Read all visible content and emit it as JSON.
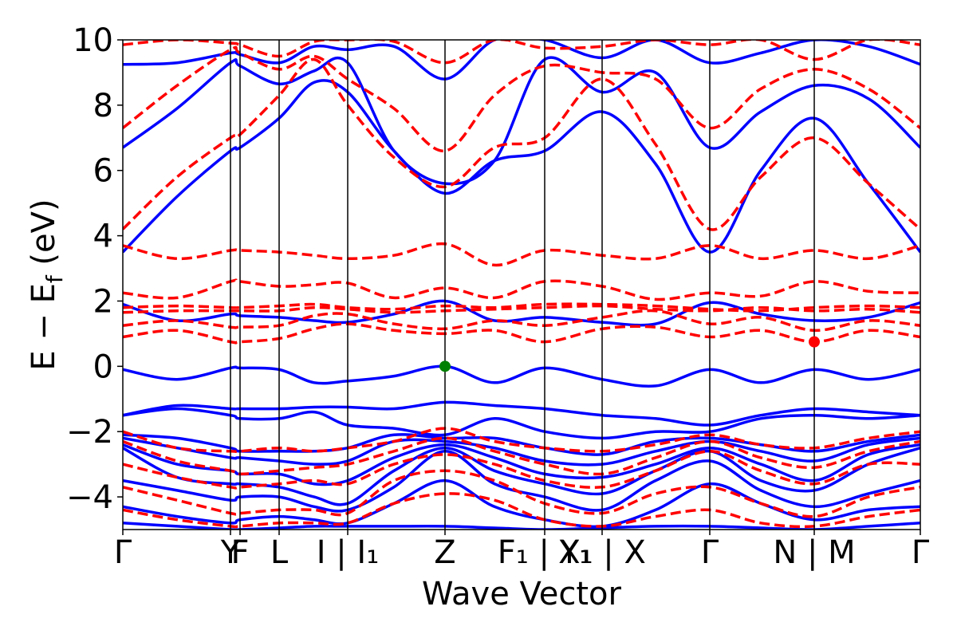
{
  "chart_data": {
    "type": "line",
    "title": "",
    "xlabel": "Wave Vector",
    "ylabel": "E − E_f (eV)",
    "ylabel_parts": {
      "main": "E  −  E",
      "sub": "f",
      "unit": " (eV)"
    },
    "ylim": [
      -5,
      10
    ],
    "yticks": [
      -4,
      -2,
      0,
      2,
      4,
      6,
      8,
      10
    ],
    "ytick_labels": [
      "−4",
      "−2",
      "0",
      "2",
      "4",
      "6",
      "8",
      "10"
    ],
    "grid": false,
    "legend": "none",
    "kpath": [
      {
        "label": "Γ",
        "x": 0.0
      },
      {
        "label": "Y",
        "x": 0.135
      },
      {
        "label": "F",
        "x": 0.147
      },
      {
        "label": "L",
        "x": 0.196
      },
      {
        "label": "I | I₁",
        "x": 0.282
      },
      {
        "label": "Z",
        "x": 0.404
      },
      {
        "label": "F₁ | Y₁",
        "x": 0.529
      },
      {
        "label": "X₁ | X",
        "x": 0.601
      },
      {
        "label": "Γ",
        "x": 0.736
      },
      {
        "label": "N | M",
        "x": 0.867
      },
      {
        "label": "Γ",
        "x": 1.0
      }
    ],
    "band_x": [
      0.0,
      0.068,
      0.135,
      0.147,
      0.196,
      0.24,
      0.282,
      0.34,
      0.404,
      0.466,
      0.529,
      0.601,
      0.668,
      0.736,
      0.8,
      0.867,
      0.935,
      1.0
    ],
    "series": [
      {
        "style": "solid",
        "color": "#0000ff",
        "bands": [
          [
            -4.8,
            -4.9,
            -5.0,
            -5.0,
            -4.95,
            -4.9,
            -4.9,
            -4.9,
            -4.9,
            -4.95,
            -5.0,
            -4.95,
            -4.9,
            -4.9,
            -4.95,
            -5.0,
            -4.9,
            -4.8
          ],
          [
            -4.3,
            -4.6,
            -4.8,
            -4.7,
            -4.6,
            -4.7,
            -4.8,
            -4.2,
            -3.5,
            -4.3,
            -4.7,
            -4.9,
            -4.4,
            -3.6,
            -4.2,
            -4.7,
            -4.4,
            -4.3
          ],
          [
            -3.5,
            -3.8,
            -4.1,
            -4.0,
            -4.0,
            -4.3,
            -4.4,
            -3.7,
            -2.6,
            -3.6,
            -4.0,
            -4.4,
            -3.5,
            -2.9,
            -3.8,
            -4.3,
            -3.9,
            -3.5
          ],
          [
            -2.5,
            -3.4,
            -3.6,
            -3.6,
            -3.7,
            -4.0,
            -4.2,
            -3.2,
            -2.5,
            -3.2,
            -3.6,
            -3.9,
            -3.2,
            -2.6,
            -3.5,
            -3.8,
            -3.0,
            -2.5
          ],
          [
            -2.4,
            -3.0,
            -3.2,
            -3.3,
            -3.3,
            -3.6,
            -3.5,
            -2.8,
            -2.4,
            -2.8,
            -3.3,
            -3.4,
            -3.0,
            -2.5,
            -3.0,
            -3.5,
            -2.7,
            -2.4
          ],
          [
            -2.2,
            -2.5,
            -2.8,
            -2.8,
            -2.9,
            -3.0,
            -2.9,
            -2.3,
            -2.3,
            -2.5,
            -2.9,
            -3.0,
            -2.6,
            -2.3,
            -2.6,
            -2.9,
            -2.4,
            -2.2
          ],
          [
            -2.1,
            -2.2,
            -2.5,
            -2.6,
            -2.6,
            -2.6,
            -2.5,
            -2.1,
            -2.2,
            -2.2,
            -2.5,
            -2.7,
            -2.3,
            -2.2,
            -2.4,
            -2.6,
            -2.3,
            -2.1
          ],
          [
            -1.5,
            -1.3,
            -1.5,
            -1.6,
            -1.6,
            -1.4,
            -1.8,
            -1.9,
            -2.1,
            -1.6,
            -2.0,
            -2.2,
            -2.0,
            -2.0,
            -1.6,
            -1.5,
            -1.6,
            -1.5
          ],
          [
            -1.5,
            -1.2,
            -1.3,
            -1.3,
            -1.3,
            -1.25,
            -1.25,
            -1.3,
            -1.1,
            -1.2,
            -1.3,
            -1.5,
            -1.6,
            -1.8,
            -1.5,
            -1.3,
            -1.4,
            -1.5
          ],
          [
            -0.1,
            -0.4,
            -0.05,
            -0.05,
            -0.1,
            -0.5,
            -0.45,
            -0.3,
            0.0,
            -0.5,
            -0.05,
            -0.4,
            -0.6,
            -0.1,
            -0.5,
            -0.1,
            -0.4,
            -0.1
          ],
          [
            1.9,
            1.4,
            1.6,
            1.55,
            1.5,
            1.4,
            1.35,
            1.6,
            2.0,
            1.4,
            1.5,
            1.35,
            1.3,
            1.95,
            1.6,
            1.4,
            1.5,
            1.95
          ],
          [
            3.5,
            5.2,
            6.6,
            6.7,
            7.6,
            8.7,
            8.4,
            6.6,
            5.3,
            6.3,
            6.6,
            7.8,
            6.2,
            3.5,
            6.0,
            7.6,
            5.6,
            3.5
          ],
          [
            6.7,
            7.9,
            9.3,
            9.2,
            8.65,
            9.05,
            9.3,
            6.6,
            5.6,
            6.3,
            9.4,
            8.4,
            9.0,
            6.7,
            7.8,
            8.6,
            8.2,
            6.7
          ],
          [
            9.25,
            9.3,
            9.6,
            9.55,
            9.3,
            9.8,
            9.7,
            9.8,
            8.8,
            10.0,
            10.0,
            9.45,
            10.0,
            9.3,
            9.6,
            10.0,
            9.8,
            9.25
          ]
        ]
      },
      {
        "style": "dashed",
        "color": "#ff0000",
        "bands": [
          [
            -4.4,
            -4.7,
            -4.9,
            -4.9,
            -4.8,
            -4.8,
            -4.8,
            -4.2,
            -3.9,
            -4.1,
            -4.7,
            -4.9,
            -4.6,
            -4.4,
            -4.8,
            -4.9,
            -4.6,
            -4.4
          ],
          [
            -3.7,
            -4.1,
            -4.5,
            -4.5,
            -4.4,
            -4.4,
            -4.5,
            -3.5,
            -3.2,
            -3.5,
            -4.2,
            -4.5,
            -3.9,
            -3.7,
            -4.2,
            -4.6,
            -4.0,
            -3.7
          ],
          [
            -3.0,
            -3.4,
            -3.7,
            -3.7,
            -3.6,
            -3.5,
            -3.6,
            -3.0,
            -2.7,
            -3.0,
            -3.5,
            -3.7,
            -3.2,
            -2.6,
            -3.2,
            -3.6,
            -3.0,
            -3.0
          ],
          [
            -2.3,
            -2.9,
            -3.2,
            -3.3,
            -3.2,
            -3.1,
            -3.0,
            -2.6,
            -2.2,
            -2.6,
            -3.0,
            -3.3,
            -2.8,
            -2.3,
            -2.8,
            -3.1,
            -2.6,
            -2.3
          ],
          [
            -2.0,
            -2.5,
            -2.6,
            -2.6,
            -2.5,
            -2.6,
            -2.5,
            -2.3,
            -1.9,
            -2.3,
            -2.5,
            -2.6,
            -2.4,
            -2.1,
            -2.4,
            -2.5,
            -2.2,
            -2.0
          ],
          [
            0.9,
            1.1,
            0.75,
            0.75,
            0.85,
            1.15,
            1.3,
            1.1,
            1.0,
            1.1,
            0.75,
            1.15,
            1.2,
            0.9,
            1.1,
            0.75,
            1.1,
            0.9
          ],
          [
            1.25,
            1.4,
            1.2,
            1.2,
            1.25,
            1.55,
            1.6,
            1.3,
            1.15,
            1.4,
            1.25,
            1.5,
            1.7,
            1.3,
            1.5,
            1.1,
            1.4,
            1.25
          ],
          [
            1.65,
            1.7,
            1.7,
            1.7,
            1.7,
            1.8,
            1.75,
            1.65,
            1.7,
            1.75,
            1.8,
            1.85,
            1.75,
            1.7,
            1.8,
            1.7,
            1.75,
            1.65
          ],
          [
            1.8,
            1.85,
            1.8,
            1.8,
            1.85,
            1.9,
            1.8,
            1.75,
            1.85,
            1.8,
            1.9,
            1.9,
            1.85,
            1.75,
            1.7,
            1.8,
            1.85,
            1.8
          ],
          [
            2.25,
            2.1,
            2.6,
            2.6,
            2.45,
            2.5,
            2.55,
            2.1,
            2.4,
            2.1,
            2.6,
            2.45,
            2.05,
            2.25,
            2.15,
            2.6,
            2.3,
            2.25
          ],
          [
            3.7,
            3.3,
            3.55,
            3.55,
            3.5,
            3.4,
            3.3,
            3.4,
            3.75,
            3.1,
            3.55,
            3.4,
            3.3,
            3.7,
            3.3,
            3.55,
            3.3,
            3.7
          ],
          [
            4.2,
            5.8,
            7.0,
            7.1,
            8.3,
            9.4,
            8.0,
            6.4,
            5.5,
            6.7,
            7.0,
            8.8,
            6.8,
            4.2,
            5.8,
            7.0,
            5.6,
            4.2
          ],
          [
            7.3,
            8.6,
            9.7,
            9.6,
            9.1,
            9.5,
            8.8,
            7.9,
            6.6,
            8.3,
            9.2,
            9.0,
            8.8,
            7.3,
            8.5,
            9.1,
            8.5,
            7.3
          ],
          [
            9.85,
            10.0,
            9.9,
            9.85,
            9.5,
            9.95,
            10.0,
            9.95,
            9.3,
            10.0,
            9.75,
            9.8,
            10.0,
            9.85,
            10.0,
            9.4,
            10.0,
            9.85
          ]
        ]
      }
    ],
    "markers": [
      {
        "name": "valence-band-maximum",
        "x": 0.404,
        "y": 0.0,
        "color": "#008000"
      },
      {
        "name": "conduction-band-minimum",
        "x": 0.867,
        "y": 0.75,
        "color": "#ff0000"
      }
    ]
  }
}
